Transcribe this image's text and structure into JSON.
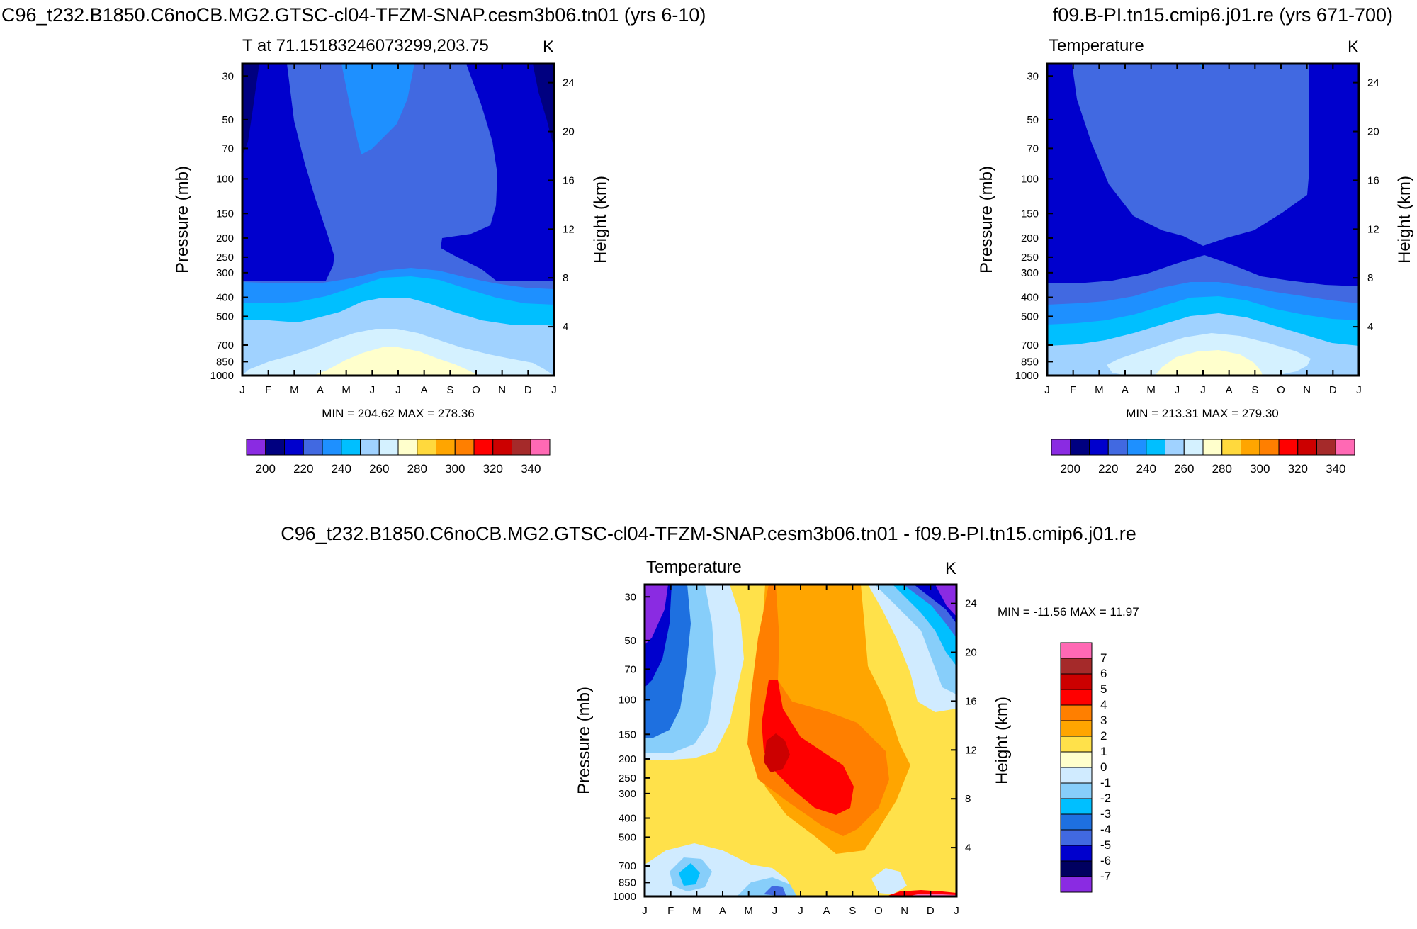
{
  "chart_data": [
    {
      "type": "contour",
      "title": "C96_t232.B1850.C6noCB.MG2.GTSC-cl04-TFZM-SNAP.cesm3b06.tn01 (yrs 6-10)",
      "left_string": "T at 71.15183246073299,203.75",
      "right_string": "K",
      "xlabel": "",
      "ylabel": "Pressure (mb)",
      "ylabel_right": "Height (km)",
      "x_ticks": [
        "J",
        "F",
        "M",
        "A",
        "M",
        "J",
        "J",
        "A",
        "S",
        "O",
        "N",
        "D",
        "J"
      ],
      "pressure_ticks": [
        30,
        50,
        70,
        100,
        150,
        200,
        250,
        300,
        400,
        500,
        700,
        850,
        1000
      ],
      "height_ticks": [
        24,
        20,
        16,
        12,
        8,
        4
      ],
      "stats": "MIN = 204.62 MAX = 278.36",
      "colorbar": {
        "colors": [
          "#8a2be2",
          "#000080",
          "#0000cd",
          "#4169e1",
          "#1e90ff",
          "#00bfff",
          "#a0d2ff",
          "#d4f1ff",
          "#ffffcc",
          "#ffd93d",
          "#ffa500",
          "#ff7f00",
          "#ff0000",
          "#cc0000",
          "#a52a2a",
          "#ff69b4"
        ],
        "labels": [
          "200",
          "220",
          "240",
          "260",
          "280",
          "300",
          "320",
          "340"
        ]
      },
      "levels": [
        {
          "name": "T-200-210",
          "color": "#000080"
        },
        {
          "name": "T-210-220",
          "color": "#0000cd"
        },
        {
          "name": "T-220-230",
          "color": "#4169e1"
        },
        {
          "name": "T-230-240",
          "color": "#1e90ff"
        },
        {
          "name": "T-240-250",
          "color": "#00bfff"
        },
        {
          "name": "T-250-260",
          "color": "#a0d2ff"
        },
        {
          "name": "T-260-270",
          "color": "#d4f1ff"
        },
        {
          "name": "T-270-280",
          "color": "#ffffcc"
        }
      ]
    },
    {
      "type": "contour",
      "title": "f09.B-PI.tn15.cmip6.j01.re (yrs 671-700)",
      "left_string": "Temperature",
      "right_string": "K",
      "ylabel": "Pressure (mb)",
      "ylabel_right": "Height (km)",
      "x_ticks": [
        "J",
        "F",
        "M",
        "A",
        "M",
        "J",
        "J",
        "A",
        "S",
        "O",
        "N",
        "D",
        "J"
      ],
      "pressure_ticks": [
        30,
        50,
        70,
        100,
        150,
        200,
        250,
        300,
        400,
        500,
        700,
        850,
        1000
      ],
      "height_ticks": [
        24,
        20,
        16,
        12,
        8,
        4
      ],
      "stats": "MIN = 213.31 MAX = 279.30",
      "colorbar": {
        "colors": [
          "#8a2be2",
          "#000080",
          "#0000cd",
          "#4169e1",
          "#1e90ff",
          "#00bfff",
          "#a0d2ff",
          "#d4f1ff",
          "#ffffcc",
          "#ffd93d",
          "#ffa500",
          "#ff7f00",
          "#ff0000",
          "#cc0000",
          "#a52a2a",
          "#ff69b4"
        ],
        "labels": [
          "200",
          "220",
          "240",
          "260",
          "280",
          "300",
          "320",
          "340"
        ]
      }
    },
    {
      "type": "contour",
      "title": "C96_t232.B1850.C6noCB.MG2.GTSC-cl04-TFZM-SNAP.cesm3b06.tn01 - f09.B-PI.tn15.cmip6.j01.re",
      "left_string": "Temperature",
      "right_string": "K",
      "ylabel": "Pressure (mb)",
      "ylabel_right": "Height (km)",
      "x_ticks": [
        "J",
        "F",
        "M",
        "A",
        "M",
        "J",
        "J",
        "A",
        "S",
        "O",
        "N",
        "D",
        "J"
      ],
      "pressure_ticks": [
        30,
        50,
        70,
        100,
        150,
        200,
        250,
        300,
        400,
        500,
        700,
        850,
        1000
      ],
      "height_ticks": [
        24,
        20,
        16,
        12,
        8,
        4
      ],
      "stats": "MIN = -11.56 MAX =  11.97",
      "colorbar": {
        "colors": [
          "#8a2be2",
          "#000060",
          "#0000cd",
          "#4169e1",
          "#1e70e0",
          "#00bfff",
          "#87cefa",
          "#d0ebff",
          "#ffffcc",
          "#ffe14a",
          "#ffa500",
          "#ff7f00",
          "#ff0000",
          "#cc0000",
          "#a52a2a",
          "#ff69b4"
        ],
        "labels": [
          "7",
          "6",
          "5",
          "4",
          "3",
          "2",
          "1",
          "0",
          "-1",
          "-2",
          "-3",
          "-4",
          "-5",
          "-6",
          "-7"
        ]
      }
    }
  ],
  "headers": {
    "top_left": "C96_t232.B1850.C6noCB.MG2.GTSC-cl04-TFZM-SNAP.cesm3b06.tn01 (yrs 6-10)",
    "top_right": "f09.B-PI.tn15.cmip6.j01.re (yrs 671-700)",
    "bottom": "C96_t232.B1850.C6noCB.MG2.GTSC-cl04-TFZM-SNAP.cesm3b06.tn01 - f09.B-PI.tn15.cmip6.j01.re"
  }
}
